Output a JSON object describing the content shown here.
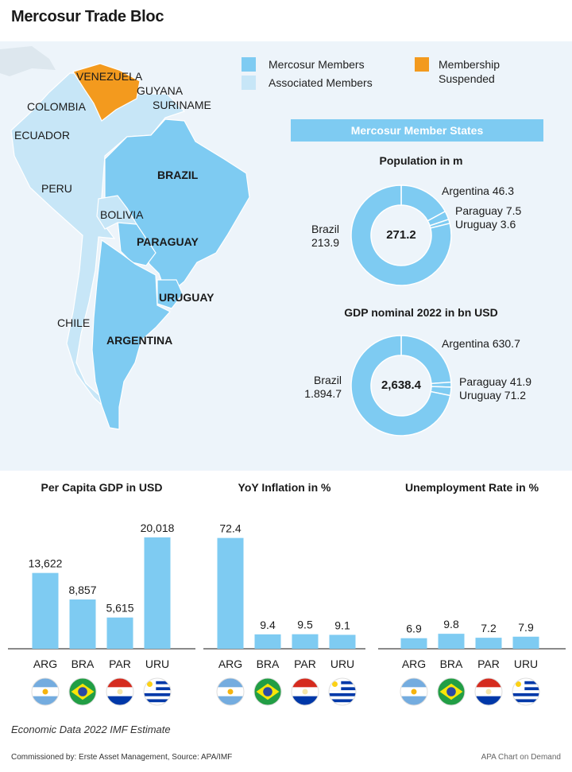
{
  "title": "Mercosur Trade Bloc",
  "legend": {
    "members": {
      "label": "Mercosur Members",
      "color": "#7ecbf2"
    },
    "associated": {
      "label": "Associated Members",
      "color": "#c7e6f7"
    },
    "suspended": {
      "label": "Membership\nSuspended",
      "color": "#f39a1e"
    }
  },
  "map": {
    "countries": {
      "venezuela": "VENEZUELA",
      "guyana": "GUYANA",
      "suriname": "SURINAME",
      "colombia": "COLOMBIA",
      "ecuador": "ECUADOR",
      "brazil": "BRAZIL",
      "peru": "PERU",
      "bolivia": "BOLIVIA",
      "paraguay": "PARAGUAY",
      "uruguay": "URUGUAY",
      "chile": "CHILE",
      "argentina": "ARGENTINA"
    }
  },
  "banner": "Mercosur Member States",
  "chart_data": [
    {
      "type": "pie",
      "title": "Population in m",
      "total_label": "271.2",
      "slices": [
        {
          "name": "Brazil",
          "value": 213.9,
          "label": "Brazil\n213.9"
        },
        {
          "name": "Argentina",
          "value": 46.3,
          "label": "Argentina 46.3"
        },
        {
          "name": "Paraguay",
          "value": 7.5,
          "label": "Paraguay 7.5"
        },
        {
          "name": "Uruguay",
          "value": 3.6,
          "label": "Uruguay 3.6"
        }
      ]
    },
    {
      "type": "pie",
      "title": "GDP nominal 2022 in bn USD",
      "total_label": "2,638.4",
      "slices": [
        {
          "name": "Brazil",
          "value": 1894.7,
          "label": "Brazil\n1.894.7"
        },
        {
          "name": "Argentina",
          "value": 630.7,
          "label": "Argentina 630.7"
        },
        {
          "name": "Paraguay",
          "value": 41.9,
          "label": "Paraguay 41.9"
        },
        {
          "name": "Uruguay",
          "value": 71.2,
          "label": "Uruguay 71.2"
        }
      ]
    },
    {
      "type": "bar",
      "title": "Per Capita GDP in USD",
      "categories": [
        "ARG",
        "BRA",
        "PAR",
        "URU"
      ],
      "values": [
        13622,
        8857,
        5615,
        20018
      ],
      "value_labels": [
        "13,622",
        "8,857",
        "5,615",
        "20,018"
      ],
      "ylim": [
        0,
        22000
      ]
    },
    {
      "type": "bar",
      "title": "YoY Inflation in %",
      "categories": [
        "ARG",
        "BRA",
        "PAR",
        "URU"
      ],
      "values": [
        72.4,
        9.4,
        9.5,
        9.1
      ],
      "value_labels": [
        "72.4",
        "9.4",
        "9.5",
        "9.1"
      ],
      "ylim": [
        0,
        80
      ]
    },
    {
      "type": "bar",
      "title": "Unemployment Rate in %",
      "categories": [
        "ARG",
        "BRA",
        "PAR",
        "URU"
      ],
      "values": [
        6.9,
        9.8,
        7.2,
        7.9
      ],
      "value_labels": [
        "6.9",
        "9.8",
        "7.2",
        "7.9"
      ],
      "ylim": [
        0,
        80
      ]
    }
  ],
  "footnote": "Economic Data 2022 IMF Estimate",
  "commission": "Commissioned by: Erste Asset Management, Source: APA/IMF",
  "credit": "APA Chart on Demand"
}
